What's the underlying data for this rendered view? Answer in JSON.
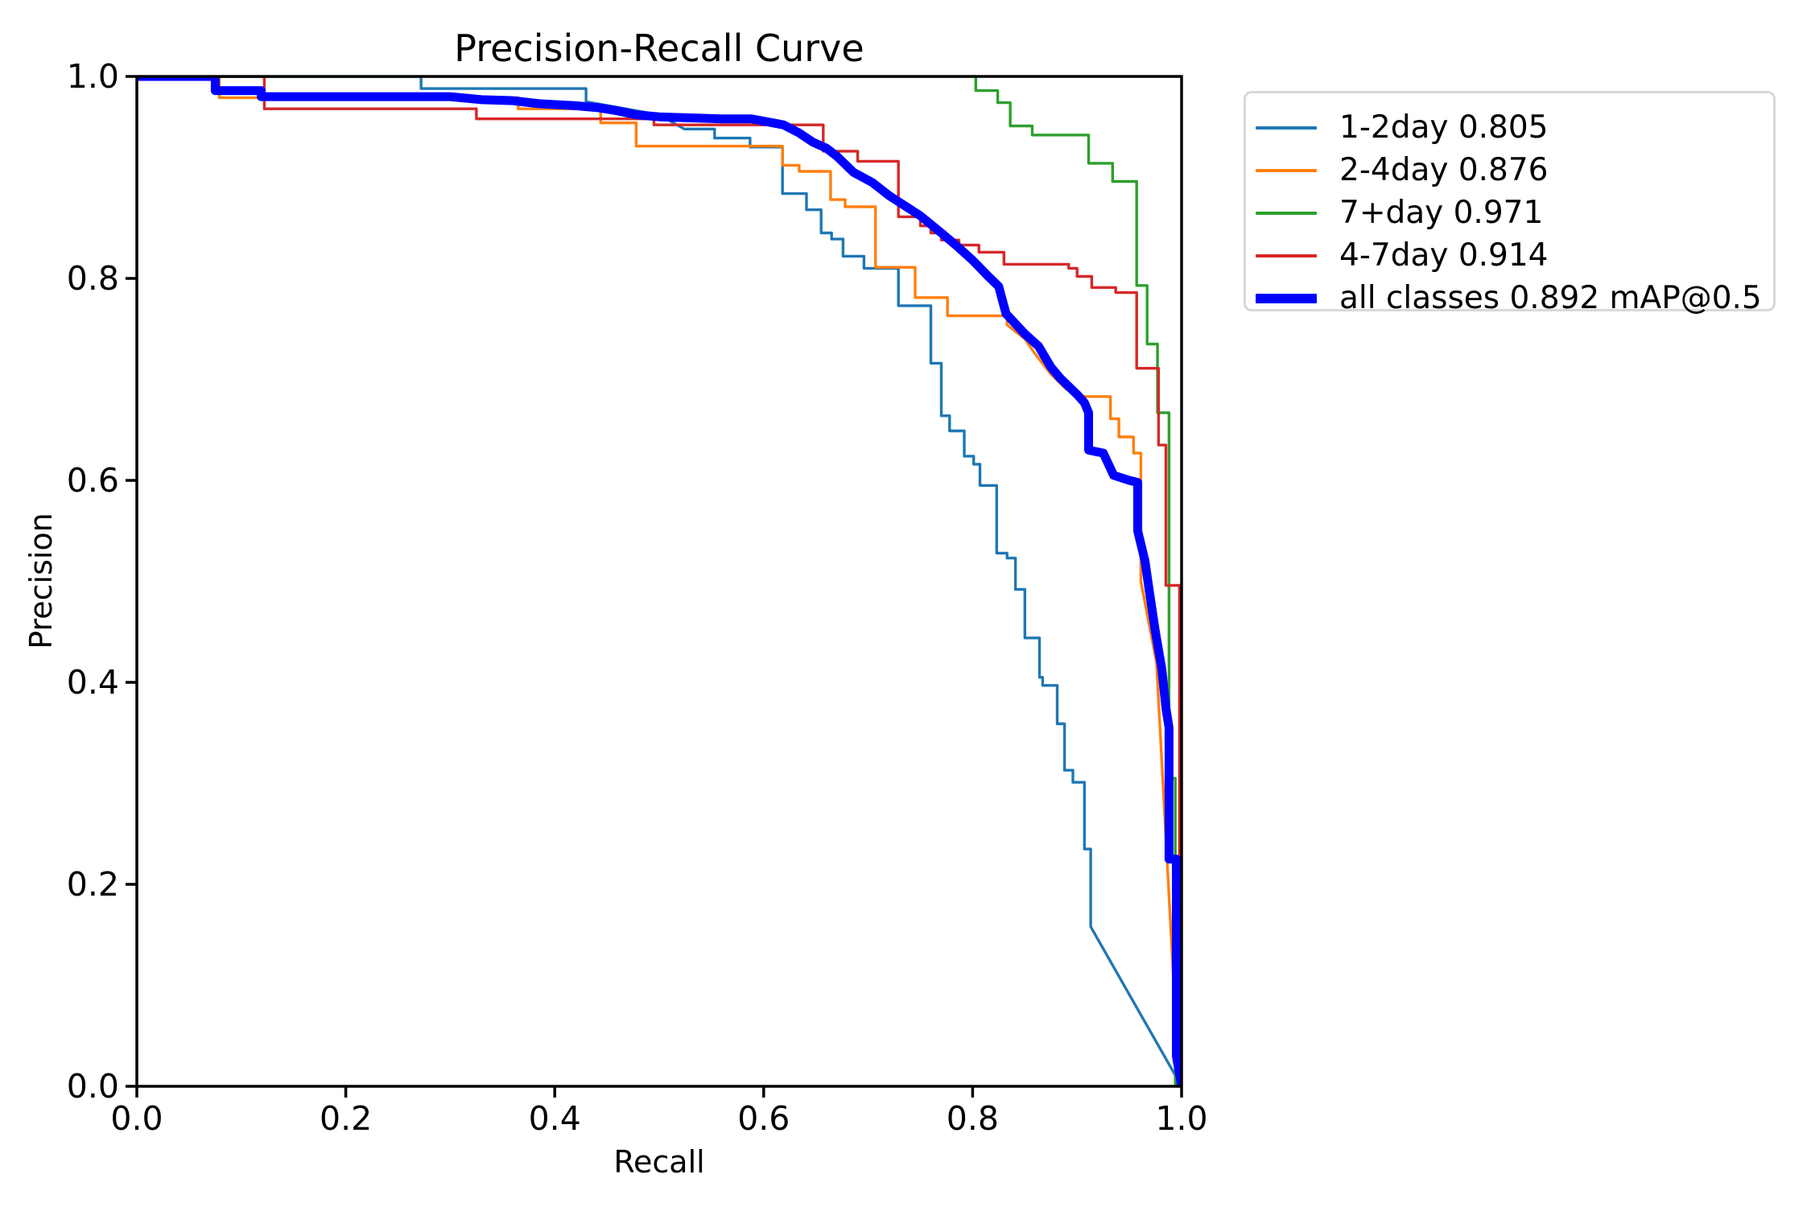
{
  "chart_data": {
    "type": "line",
    "title": "Precision-Recall Curve",
    "xlabel": "Recall",
    "ylabel": "Precision",
    "xlim": [
      0.0,
      1.0
    ],
    "ylim": [
      0.0,
      1.0
    ],
    "grid": false,
    "legend_position": "outside-upper-right",
    "xticks": [
      "0.0",
      "0.2",
      "0.4",
      "0.6",
      "0.8",
      "1.0"
    ],
    "yticks": [
      "0.0",
      "0.2",
      "0.4",
      "0.6",
      "0.8",
      "1.0"
    ],
    "xtick_values": [
      0,
      0.2,
      0.4,
      0.6,
      0.8,
      1.0
    ],
    "ytick_values": [
      0,
      0.2,
      0.4,
      0.6,
      0.8,
      1.0
    ],
    "axis_color": "#000000",
    "series": [
      {
        "name": "1-2day",
        "ap": 0.805,
        "label": "1-2day 0.805",
        "color": "#1f77b4",
        "line_width": 3.4,
        "points": [
          [
            0,
            1
          ],
          [
            0.272,
            1
          ],
          [
            0.272,
            0.988
          ],
          [
            0.43,
            0.988
          ],
          [
            0.43,
            0.975
          ],
          [
            0.5,
            0.962
          ],
          [
            0.524,
            0.948
          ],
          [
            0.553,
            0.948
          ],
          [
            0.553,
            0.939
          ],
          [
            0.587,
            0.939
          ],
          [
            0.587,
            0.93
          ],
          [
            0.618,
            0.93
          ],
          [
            0.618,
            0.884
          ],
          [
            0.641,
            0.884
          ],
          [
            0.641,
            0.868
          ],
          [
            0.655,
            0.868
          ],
          [
            0.655,
            0.845
          ],
          [
            0.665,
            0.845
          ],
          [
            0.665,
            0.839
          ],
          [
            0.676,
            0.839
          ],
          [
            0.676,
            0.822
          ],
          [
            0.696,
            0.822
          ],
          [
            0.696,
            0.81
          ],
          [
            0.729,
            0.81
          ],
          [
            0.729,
            0.773
          ],
          [
            0.76,
            0.773
          ],
          [
            0.76,
            0.716
          ],
          [
            0.77,
            0.716
          ],
          [
            0.77,
            0.664
          ],
          [
            0.778,
            0.664
          ],
          [
            0.778,
            0.649
          ],
          [
            0.792,
            0.649
          ],
          [
            0.792,
            0.624
          ],
          [
            0.801,
            0.624
          ],
          [
            0.801,
            0.616
          ],
          [
            0.807,
            0.616
          ],
          [
            0.807,
            0.595
          ],
          [
            0.823,
            0.595
          ],
          [
            0.823,
            0.528
          ],
          [
            0.833,
            0.528
          ],
          [
            0.833,
            0.523
          ],
          [
            0.841,
            0.523
          ],
          [
            0.841,
            0.492
          ],
          [
            0.85,
            0.492
          ],
          [
            0.85,
            0.444
          ],
          [
            0.864,
            0.444
          ],
          [
            0.864,
            0.405
          ],
          [
            0.867,
            0.405
          ],
          [
            0.867,
            0.397
          ],
          [
            0.881,
            0.397
          ],
          [
            0.881,
            0.359
          ],
          [
            0.888,
            0.359
          ],
          [
            0.888,
            0.313
          ],
          [
            0.896,
            0.313
          ],
          [
            0.896,
            0.301
          ],
          [
            0.907,
            0.301
          ],
          [
            0.907,
            0.235
          ],
          [
            0.913,
            0.235
          ],
          [
            0.913,
            0.158
          ],
          [
            1,
            0
          ]
        ]
      },
      {
        "name": "2-4day",
        "ap": 0.876,
        "label": "2-4day 0.876",
        "color": "#ff7f0e",
        "line_width": 3.4,
        "points": [
          [
            0,
            1
          ],
          [
            0.079,
            1
          ],
          [
            0.079,
            0.979
          ],
          [
            0.365,
            0.979
          ],
          [
            0.365,
            0.968
          ],
          [
            0.444,
            0.968
          ],
          [
            0.444,
            0.954
          ],
          [
            0.478,
            0.954
          ],
          [
            0.478,
            0.931
          ],
          [
            0.618,
            0.931
          ],
          [
            0.618,
            0.912
          ],
          [
            0.634,
            0.912
          ],
          [
            0.634,
            0.906
          ],
          [
            0.664,
            0.906
          ],
          [
            0.664,
            0.878
          ],
          [
            0.678,
            0.878
          ],
          [
            0.678,
            0.871
          ],
          [
            0.707,
            0.871
          ],
          [
            0.707,
            0.811
          ],
          [
            0.745,
            0.811
          ],
          [
            0.745,
            0.781
          ],
          [
            0.776,
            0.781
          ],
          [
            0.776,
            0.763
          ],
          [
            0.833,
            0.763
          ],
          [
            0.833,
            0.754
          ],
          [
            0.85,
            0.74
          ],
          [
            0.86,
            0.725
          ],
          [
            0.875,
            0.705
          ],
          [
            0.89,
            0.69
          ],
          [
            0.907,
            0.683
          ],
          [
            0.932,
            0.683
          ],
          [
            0.932,
            0.661
          ],
          [
            0.94,
            0.661
          ],
          [
            0.94,
            0.643
          ],
          [
            0.954,
            0.643
          ],
          [
            0.954,
            0.627
          ],
          [
            0.961,
            0.627
          ],
          [
            0.961,
            0.5
          ],
          [
            0.976,
            0.42
          ],
          [
            0.99,
            0.15
          ],
          [
            0.996,
            0.03
          ],
          [
            0.996,
            0
          ]
        ]
      },
      {
        "name": "7+day",
        "ap": 0.971,
        "label": "7+day 0.971",
        "color": "#2ca02c",
        "line_width": 3.4,
        "points": [
          [
            0,
            1
          ],
          [
            0.803,
            1
          ],
          [
            0.803,
            0.986
          ],
          [
            0.824,
            0.986
          ],
          [
            0.824,
            0.974
          ],
          [
            0.836,
            0.974
          ],
          [
            0.836,
            0.951
          ],
          [
            0.857,
            0.951
          ],
          [
            0.857,
            0.942
          ],
          [
            0.911,
            0.942
          ],
          [
            0.911,
            0.914
          ],
          [
            0.934,
            0.914
          ],
          [
            0.934,
            0.896
          ],
          [
            0.957,
            0.896
          ],
          [
            0.957,
            0.793
          ],
          [
            0.967,
            0.793
          ],
          [
            0.967,
            0.735
          ],
          [
            0.977,
            0.735
          ],
          [
            0.977,
            0.667
          ],
          [
            0.988,
            0.667
          ],
          [
            0.988,
            0.305
          ],
          [
            0.994,
            0.305
          ],
          [
            0.994,
            0
          ]
        ]
      },
      {
        "name": "4-7day",
        "ap": 0.914,
        "label": "4-7day 0.914",
        "color": "#d62728",
        "line_width": 3.4,
        "points": [
          [
            0,
            1
          ],
          [
            0.122,
            1
          ],
          [
            0.122,
            0.968
          ],
          [
            0.325,
            0.968
          ],
          [
            0.325,
            0.958
          ],
          [
            0.495,
            0.958
          ],
          [
            0.495,
            0.952
          ],
          [
            0.657,
            0.952
          ],
          [
            0.657,
            0.926
          ],
          [
            0.69,
            0.926
          ],
          [
            0.69,
            0.916
          ],
          [
            0.729,
            0.916
          ],
          [
            0.729,
            0.861
          ],
          [
            0.75,
            0.861
          ],
          [
            0.75,
            0.852
          ],
          [
            0.76,
            0.852
          ],
          [
            0.76,
            0.845
          ],
          [
            0.77,
            0.845
          ],
          [
            0.77,
            0.838
          ],
          [
            0.787,
            0.838
          ],
          [
            0.787,
            0.833
          ],
          [
            0.806,
            0.833
          ],
          [
            0.806,
            0.826
          ],
          [
            0.83,
            0.826
          ],
          [
            0.83,
            0.814
          ],
          [
            0.892,
            0.814
          ],
          [
            0.892,
            0.81
          ],
          [
            0.9,
            0.81
          ],
          [
            0.9,
            0.802
          ],
          [
            0.914,
            0.802
          ],
          [
            0.914,
            0.791
          ],
          [
            0.937,
            0.791
          ],
          [
            0.937,
            0.786
          ],
          [
            0.957,
            0.786
          ],
          [
            0.957,
            0.711
          ],
          [
            0.978,
            0.711
          ],
          [
            0.978,
            0.635
          ],
          [
            0.985,
            0.635
          ],
          [
            0.985,
            0.496
          ],
          [
            0.998,
            0.496
          ],
          [
            0.998,
            0
          ]
        ]
      },
      {
        "name": "all classes",
        "ap": 0.892,
        "label": "all classes 0.892 mAP@0.5",
        "color": "#0000ff",
        "line_width": 11,
        "points": [
          [
            0,
            1
          ],
          [
            0.075,
            1
          ],
          [
            0.075,
            0.986
          ],
          [
            0.119,
            0.986
          ],
          [
            0.119,
            0.98
          ],
          [
            0.3,
            0.98
          ],
          [
            0.33,
            0.977
          ],
          [
            0.36,
            0.976
          ],
          [
            0.385,
            0.973
          ],
          [
            0.42,
            0.971
          ],
          [
            0.442,
            0.969
          ],
          [
            0.46,
            0.966
          ],
          [
            0.478,
            0.962
          ],
          [
            0.5,
            0.96
          ],
          [
            0.56,
            0.958
          ],
          [
            0.588,
            0.958
          ],
          [
            0.619,
            0.952
          ],
          [
            0.634,
            0.944
          ],
          [
            0.647,
            0.935
          ],
          [
            0.66,
            0.929
          ],
          [
            0.67,
            0.921
          ],
          [
            0.686,
            0.905
          ],
          [
            0.704,
            0.895
          ],
          [
            0.72,
            0.882
          ],
          [
            0.735,
            0.872
          ],
          [
            0.75,
            0.862
          ],
          [
            0.77,
            0.845
          ],
          [
            0.785,
            0.832
          ],
          [
            0.8,
            0.818
          ],
          [
            0.815,
            0.802
          ],
          [
            0.825,
            0.792
          ],
          [
            0.832,
            0.765
          ],
          [
            0.85,
            0.745
          ],
          [
            0.863,
            0.733
          ],
          [
            0.875,
            0.712
          ],
          [
            0.884,
            0.701
          ],
          [
            0.9,
            0.685
          ],
          [
            0.907,
            0.677
          ],
          [
            0.911,
            0.667
          ],
          [
            0.911,
            0.63
          ],
          [
            0.925,
            0.627
          ],
          [
            0.935,
            0.605
          ],
          [
            0.95,
            0.6
          ],
          [
            0.958,
            0.598
          ],
          [
            0.958,
            0.55
          ],
          [
            0.965,
            0.52
          ],
          [
            0.969,
            0.491
          ],
          [
            0.975,
            0.45
          ],
          [
            0.981,
            0.414
          ],
          [
            0.985,
            0.375
          ],
          [
            0.988,
            0.355
          ],
          [
            0.988,
            0.225
          ],
          [
            0.995,
            0.225
          ],
          [
            0.995,
            0.03
          ],
          [
            1,
            0
          ]
        ]
      }
    ]
  }
}
